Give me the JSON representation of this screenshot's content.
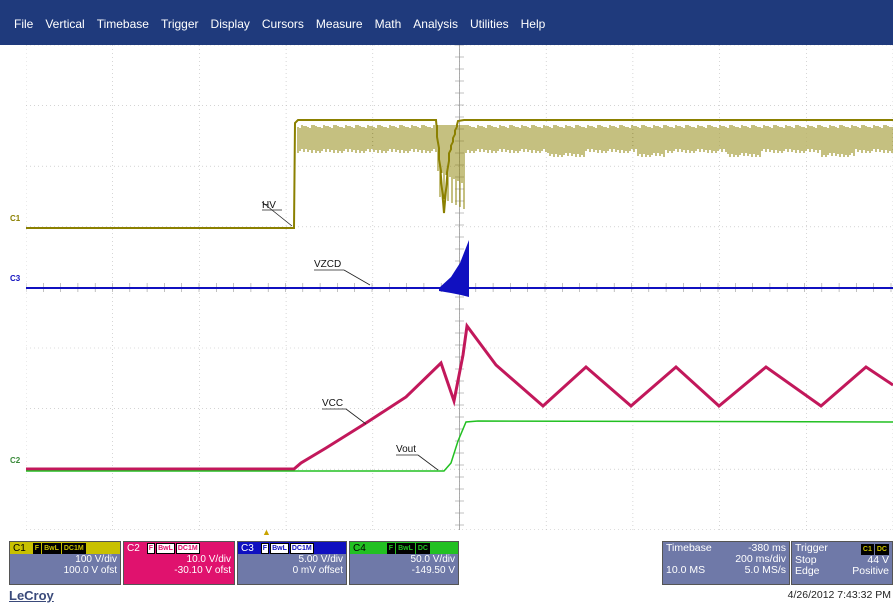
{
  "menu": [
    "File",
    "Vertical",
    "Timebase",
    "Trigger",
    "Display",
    "Cursors",
    "Measure",
    "Math",
    "Analysis",
    "Utilities",
    "Help"
  ],
  "colors": {
    "menubar": "#1F3A7C",
    "c1": "#8B8000",
    "c2": "#C2185B",
    "c3": "#1010C0",
    "c4": "#22C022",
    "grid": "#BBBBBB"
  },
  "traces": {
    "c1_label": "HV",
    "c3_label": "VZCD",
    "c2_label": "VCC",
    "c4_label": "Vout"
  },
  "channel_markers": {
    "c1": "C1",
    "c3": "C3",
    "c2": "C2"
  },
  "channels": [
    {
      "name": "C1",
      "tags": [
        "F",
        "BwL",
        "DC1M"
      ],
      "vdiv": "100 V/div",
      "offset": "100.0 V ofst"
    },
    {
      "name": "C2",
      "tags": [
        "F",
        "BwL",
        "DC1M"
      ],
      "vdiv": "10.0 V/div",
      "offset": "-30.10 V ofst"
    },
    {
      "name": "C3",
      "tags": [
        "F",
        "BwL",
        "DC1M"
      ],
      "vdiv": "5.00 V/div",
      "offset": "0 mV offset"
    },
    {
      "name": "C4",
      "tags": [
        "F",
        "BwL",
        "DC"
      ],
      "vdiv": "50.0 V/div",
      "offset": "-149.50 V"
    }
  ],
  "timebase": {
    "label": "Timebase",
    "delay": "-380 ms",
    "rate": "200 ms/div",
    "samples": "10.0 MS",
    "sample_rate": "5.0 MS/s"
  },
  "trigger": {
    "label": "Trigger",
    "tags": [
      "C1",
      "DC"
    ],
    "mode": "Stop",
    "level": "44 V",
    "type": "Edge",
    "slope": "Positive"
  },
  "brand": "LeCroy",
  "datetime": "4/26/2012 7:43:32 PM"
}
